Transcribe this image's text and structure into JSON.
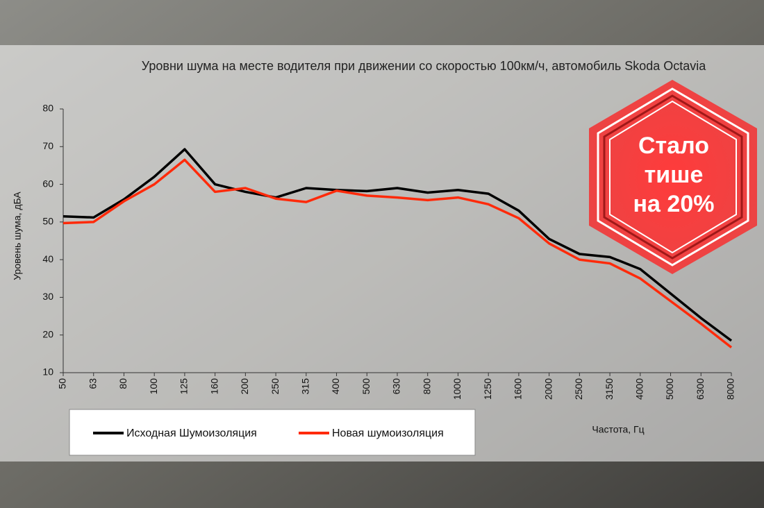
{
  "chart_data": {
    "type": "line",
    "title": "Уровни шума на месте водителя при движении со скоростью 100км/ч, автомобиль Skoda Octavia",
    "x_label": "Частота, Гц",
    "y_label": "Уровень шума, дБА",
    "categories": [
      "50",
      "63",
      "80",
      "100",
      "125",
      "160",
      "200",
      "250",
      "315",
      "400",
      "500",
      "630",
      "800",
      "1000",
      "1250",
      "1600",
      "2000",
      "2500",
      "3150",
      "4000",
      "5000",
      "6300",
      "8000"
    ],
    "series": [
      {
        "name": "Исходная Шумоизоляция",
        "color": "#000000",
        "values": [
          51.5,
          51.2,
          56,
          62,
          69.3,
          60,
          58,
          56.5,
          59,
          58.5,
          58.2,
          59,
          57.8,
          58.5,
          57.5,
          53,
          45.5,
          41.5,
          40.7,
          37.5,
          31,
          24.5,
          18.5
        ]
      },
      {
        "name": "Новая шумоизоляция",
        "color": "#ff2a0a",
        "values": [
          49.7,
          50,
          55.5,
          60,
          66.5,
          58,
          59,
          56.2,
          55.3,
          58.3,
          57,
          56.5,
          55.8,
          56.5,
          54.7,
          51,
          44.3,
          40,
          39,
          35,
          29,
          23,
          16.7
        ]
      }
    ],
    "ylim": [
      10,
      80
    ],
    "yticks": [
      10,
      20,
      30,
      40,
      50,
      60,
      70,
      80
    ],
    "grid": false
  },
  "badge": {
    "lines": [
      "Стало",
      "тише",
      "на 20%"
    ]
  }
}
